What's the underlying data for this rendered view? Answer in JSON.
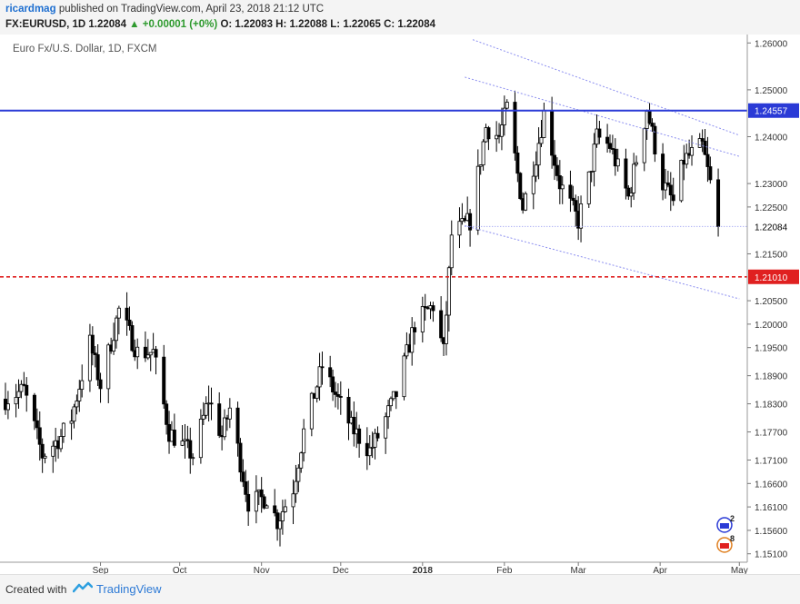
{
  "header": {
    "author": "ricardmag",
    "published": "published on TradingView.com, April 23, 2018 21:12 UTC",
    "symbol": "FX:EURUSD, 1D",
    "last": "1.22084",
    "change": "▲ +0.00001 (+0%)",
    "ohlc": "O: 1.22083  H: 1.22088  L: 1.22065  C: 1.22084"
  },
  "footer": {
    "created_with": "Created with",
    "brand": "TradingView"
  },
  "colors": {
    "support_line": "#2a3ad6",
    "resistance_line": "#e02020",
    "channel": "#8c8ff0",
    "candle": "#000000",
    "badge_blue": "#2a3ad6",
    "badge_red": "#e02020"
  },
  "chart_data": {
    "type": "candlestick",
    "title": "Euro Fx/U.S. Dollar, 1D, FXCM",
    "y_ticks": [
      "1.26000",
      "1.25000",
      "1.24000",
      "1.23000",
      "1.22500",
      "1.21500",
      "1.20500",
      "1.20000",
      "1.19500",
      "1.18900",
      "1.18300",
      "1.17700",
      "1.17100",
      "1.16600",
      "1.16100",
      "1.15600",
      "1.15100"
    ],
    "x_ticks": [
      "Sep",
      "Oct",
      "Nov",
      "Dec",
      "2018",
      "Feb",
      "Mar",
      "Apr",
      "May"
    ],
    "ylim": [
      1.1492,
      1.2618
    ],
    "xlim": [
      "2017-07-27",
      "2018-05-04"
    ],
    "horizontal_lines": [
      {
        "value": 1.24557,
        "label": "1.24557",
        "style": "solid",
        "color": "#2a3ad6"
      },
      {
        "value": 1.2101,
        "label": "1.21010",
        "style": "dashed",
        "color": "#e02020"
      },
      {
        "value": 1.22084,
        "label": "1.22084",
        "style": "dotted",
        "color": "#8c8ff0"
      }
    ],
    "trend_lines": [
      {
        "start": [
          "2018-01-20",
          1.2607
        ],
        "end": [
          "2018-05-01",
          1.2403
        ]
      },
      {
        "start": [
          "2018-01-17",
          1.2527
        ],
        "end": [
          "2018-05-01",
          1.2358
        ]
      },
      {
        "start": [
          "2018-01-17",
          1.221
        ],
        "end": [
          "2018-05-01",
          1.2054
        ]
      }
    ],
    "last_price": 1.22084,
    "waypoints": [
      [
        "2017-07-27",
        1.184
      ],
      [
        "2017-08-03",
        1.186
      ],
      [
        "2017-08-10",
        1.172
      ],
      [
        "2017-08-17",
        1.176
      ],
      [
        "2017-08-21",
        1.18
      ],
      [
        "2017-08-28",
        1.196
      ],
      [
        "2017-09-01",
        1.187
      ],
      [
        "2017-09-08",
        1.203
      ],
      [
        "2017-09-15",
        1.194
      ],
      [
        "2017-09-21",
        1.194
      ],
      [
        "2017-09-27",
        1.177
      ],
      [
        "2017-10-06",
        1.172
      ],
      [
        "2017-10-12",
        1.184
      ],
      [
        "2017-10-17",
        1.176
      ],
      [
        "2017-10-20",
        1.182
      ],
      [
        "2017-10-27",
        1.162
      ],
      [
        "2017-11-03",
        1.163
      ],
      [
        "2017-11-07",
        1.158
      ],
      [
        "2017-11-13",
        1.165
      ],
      [
        "2017-11-17",
        1.177
      ],
      [
        "2017-11-24",
        1.191
      ],
      [
        "2017-11-29",
        1.185
      ],
      [
        "2017-12-05",
        1.178
      ],
      [
        "2017-12-12",
        1.173
      ],
      [
        "2017-12-15",
        1.176
      ],
      [
        "2017-12-22",
        1.185
      ],
      [
        "2017-12-29",
        1.2
      ],
      [
        "2018-01-05",
        1.204
      ],
      [
        "2018-01-09",
        1.194
      ],
      [
        "2018-01-12",
        1.219
      ],
      [
        "2018-01-19",
        1.222
      ],
      [
        "2018-01-25",
        1.242
      ],
      [
        "2018-01-30",
        1.24
      ],
      [
        "2018-02-02",
        1.246
      ],
      [
        "2018-02-08",
        1.225
      ],
      [
        "2018-02-13",
        1.236
      ],
      [
        "2018-02-16",
        1.245
      ],
      [
        "2018-02-22",
        1.23
      ],
      [
        "2018-03-01",
        1.222
      ],
      [
        "2018-03-05",
        1.231
      ],
      [
        "2018-03-08",
        1.24
      ],
      [
        "2018-03-13",
        1.238
      ],
      [
        "2018-03-20",
        1.227
      ],
      [
        "2018-03-27",
        1.246
      ],
      [
        "2018-04-02",
        1.23
      ],
      [
        "2018-04-06",
        1.226
      ],
      [
        "2018-04-10",
        1.235
      ],
      [
        "2018-04-17",
        1.238
      ],
      [
        "2018-04-20",
        1.23
      ],
      [
        "2018-04-23",
        1.2208
      ]
    ],
    "annotations": [
      {
        "type": "event-badge",
        "label": "2",
        "date": "2018-04-24"
      },
      {
        "type": "event-badge",
        "label": "8",
        "date": "2018-04-24"
      }
    ]
  }
}
